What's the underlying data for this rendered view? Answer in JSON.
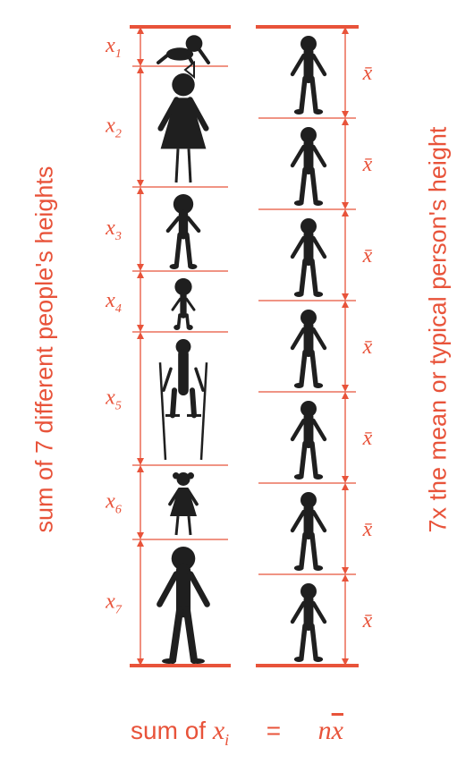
{
  "left_axis_label": "sum of 7 different people's heights",
  "right_axis_label": "7x the  mean or typical person's height",
  "people": [
    {
      "label": "x",
      "sub": "1",
      "icon": "baby-crawling-icon"
    },
    {
      "label": "x",
      "sub": "2",
      "icon": "girl-with-bow-icon"
    },
    {
      "label": "x",
      "sub": "3",
      "icon": "child-icon"
    },
    {
      "label": "x",
      "sub": "4",
      "icon": "toddler-icon"
    },
    {
      "label": "x",
      "sub": "5",
      "icon": "person-on-stilts-icon"
    },
    {
      "label": "x",
      "sub": "6",
      "icon": "girl-with-pigtails-icon"
    },
    {
      "label": "x",
      "sub": "7",
      "icon": "tall-person-icon"
    }
  ],
  "mean_label": "x̄",
  "mean_count": 7,
  "formula": {
    "left_text": "sum of ",
    "left_var": "x",
    "left_sub": "i",
    "equals": "=",
    "right_n": "n",
    "right_xbar": "x"
  },
  "colors": {
    "accent": "#e8533a",
    "silhouette": "#1f1f1f"
  }
}
